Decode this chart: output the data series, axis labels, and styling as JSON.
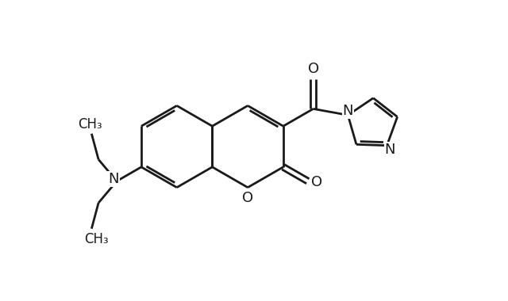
{
  "bg_color": "#ffffff",
  "line_color": "#1a1a1a",
  "line_width": 2.0,
  "figsize": [
    6.4,
    3.8
  ],
  "dpi": 100,
  "font_size": 13,
  "font_family": "DejaVu Sans",
  "atoms": {
    "O_label": "O",
    "N_label": "N",
    "CH3_label": "CH₃"
  }
}
